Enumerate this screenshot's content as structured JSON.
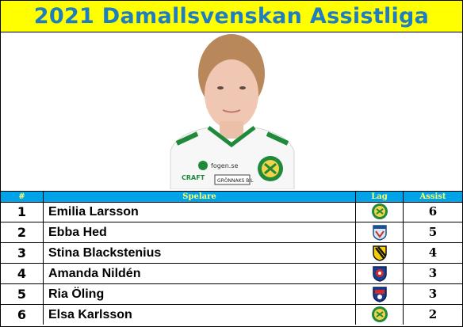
{
  "title": "2021 Damallsvenskan Assistliga",
  "header": {
    "rank": "#",
    "player": "Spelare",
    "team": "Lag",
    "assist": "Assist"
  },
  "photo": {
    "shirt_text": "fogen.se",
    "sponsor_text": "CRAFT",
    "sponsor2_text": "GRÖNNAKS BIL"
  },
  "rows": [
    {
      "rank": "1",
      "name": "Emilia Larsson",
      "team_icon": "hammarby-badge",
      "assist": "6"
    },
    {
      "rank": "2",
      "name": "Ebba Hed",
      "team_icon": "vaxjo-badge",
      "assist": "5"
    },
    {
      "rank": "3",
      "name": "Stina Blackstenius",
      "team_icon": "hacken-badge",
      "assist": "4"
    },
    {
      "rank": "4",
      "name": "Amanda Nildén",
      "team_icon": "eskilstuna-badge",
      "assist": "3"
    },
    {
      "rank": "5",
      "name": "Ria Öling",
      "team_icon": "rosengard-badge",
      "assist": "3"
    },
    {
      "rank": "6",
      "name": "Elsa Karlsson",
      "team_icon": "hammarby-badge",
      "assist": "2"
    }
  ],
  "colors": {
    "title_bg": "#ffff00",
    "title_text": "#1f7ec2",
    "header_bg": "#00a2e8",
    "header_text": "#ffff66"
  }
}
